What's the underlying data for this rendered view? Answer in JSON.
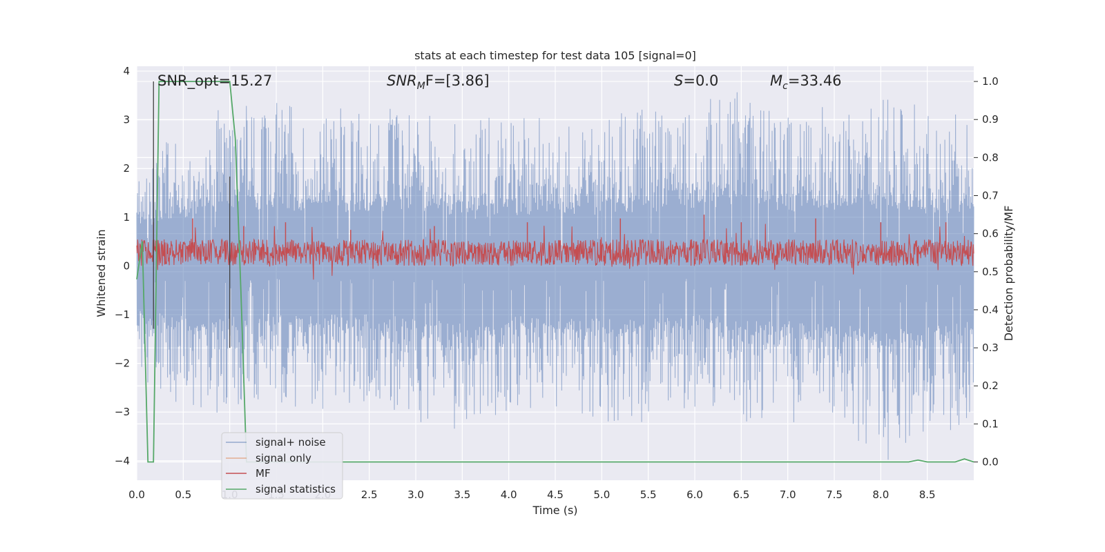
{
  "chart_data": {
    "type": "line",
    "title": "stats at each timestep for test data 105 [signal=0]",
    "xlabel": "Time (s)",
    "ylabel": "Whitened strain",
    "ylabel_right": "Detection probability/MF",
    "xlim": [
      0.0,
      9.0
    ],
    "ylim": [
      -4.4,
      4.1
    ],
    "ylim_right": [
      -0.048,
      1.04
    ],
    "grid": true,
    "legend_position": "lower-left",
    "x_ticks": [
      0.0,
      0.5,
      1.0,
      1.5,
      2.0,
      2.5,
      3.0,
      3.5,
      4.0,
      4.5,
      5.0,
      5.5,
      6.0,
      6.5,
      7.0,
      7.5,
      8.0,
      8.5
    ],
    "x_tick_labels": [
      "0.0",
      "0.5",
      "1.0",
      "1.5",
      "2.0",
      "2.5",
      "3.0",
      "3.5",
      "4.0",
      "4.5",
      "5.0",
      "5.5",
      "6.0",
      "6.5",
      "7.0",
      "7.5",
      "8.0",
      "8.5"
    ],
    "y_ticks": [
      -4,
      -3,
      -2,
      -1,
      0,
      1,
      2,
      3,
      4
    ],
    "y_tick_labels": [
      "−4",
      "−3",
      "−2",
      "−1",
      "0",
      "1",
      "2",
      "3",
      "4"
    ],
    "y_ticks_right": [
      0.0,
      0.1,
      0.2,
      0.3,
      0.4,
      0.5,
      0.6,
      0.7,
      0.8,
      0.9,
      1.0
    ],
    "y_tick_labels_right": [
      "0.0",
      "0.1",
      "0.2",
      "0.3",
      "0.4",
      "0.5",
      "0.6",
      "0.7",
      "0.8",
      "0.9",
      "1.0"
    ],
    "annotations": {
      "snr_opt": "SNR_opt=15.27",
      "snr_mf_label": "SNR",
      "snr_mf_sub": "M",
      "snr_mf_rest": "F=[3.86]",
      "s_label": "S",
      "s_rest": "=0.0",
      "mc_label": "M",
      "mc_sub": "c",
      "mc_rest": "=33.46"
    },
    "series": [
      {
        "name": "signal+ noise",
        "color": "#4c72b0",
        "axis": "left",
        "style": "noise",
        "envelope_upper": [
          [
            0.0,
            2.2
          ],
          [
            0.5,
            2.6
          ],
          [
            1.0,
            3.2
          ],
          [
            1.5,
            3.3
          ],
          [
            2.0,
            3.0
          ],
          [
            2.5,
            3.0
          ],
          [
            3.0,
            3.1
          ],
          [
            3.5,
            2.7
          ],
          [
            4.0,
            2.9
          ],
          [
            4.5,
            2.9
          ],
          [
            5.0,
            2.9
          ],
          [
            5.5,
            3.0
          ],
          [
            6.0,
            3.3
          ],
          [
            6.5,
            3.6
          ],
          [
            7.0,
            3.0
          ],
          [
            7.5,
            3.2
          ],
          [
            8.0,
            3.2
          ],
          [
            8.5,
            3.0
          ],
          [
            9.0,
            2.8
          ]
        ],
        "envelope_lower": [
          [
            0.0,
            -2.1
          ],
          [
            0.5,
            -2.9
          ],
          [
            1.0,
            -2.9
          ],
          [
            1.5,
            -2.6
          ],
          [
            2.0,
            -2.8
          ],
          [
            2.5,
            -2.7
          ],
          [
            3.0,
            -3.0
          ],
          [
            3.5,
            -3.3
          ],
          [
            4.0,
            -2.8
          ],
          [
            4.5,
            -3.0
          ],
          [
            5.0,
            -3.1
          ],
          [
            5.5,
            -3.0
          ],
          [
            6.0,
            -2.8
          ],
          [
            6.5,
            -3.0
          ],
          [
            7.0,
            -3.1
          ],
          [
            7.5,
            -3.0
          ],
          [
            8.0,
            -3.8
          ],
          [
            8.5,
            -3.4
          ],
          [
            9.0,
            -3.0
          ]
        ]
      },
      {
        "name": "signal only",
        "color": "#dd8452",
        "axis": "left",
        "style": "none"
      },
      {
        "name": "MF",
        "color": "#c44e52",
        "axis": "right",
        "style": "band",
        "band_mid": 0.55,
        "band_half_width": 0.035,
        "peaks": [
          [
            0.18,
            0.63
          ],
          [
            0.6,
            0.64
          ],
          [
            1.15,
            0.62
          ],
          [
            1.6,
            0.63
          ],
          [
            2.3,
            0.61
          ],
          [
            3.2,
            0.62
          ],
          [
            4.2,
            0.63
          ],
          [
            5.2,
            0.64
          ],
          [
            6.1,
            0.65
          ],
          [
            6.5,
            0.63
          ],
          [
            7.3,
            0.64
          ],
          [
            8.0,
            0.63
          ],
          [
            8.7,
            0.63
          ]
        ]
      },
      {
        "name": "signal statistics",
        "color": "#55a868",
        "axis": "right",
        "style": "line",
        "x": [
          0.0,
          0.06,
          0.12,
          0.18,
          0.24,
          0.3,
          0.6,
          0.9,
          1.0,
          1.06,
          1.12,
          1.18,
          1.5,
          2.0,
          3.0,
          4.0,
          5.0,
          6.0,
          7.0,
          8.0,
          8.3,
          8.4,
          8.5,
          8.8,
          8.9,
          9.0
        ],
        "y": [
          0.48,
          0.58,
          0.0,
          0.0,
          1.0,
          1.0,
          1.0,
          1.0,
          1.0,
          0.85,
          0.45,
          0.0,
          0.0,
          0.0,
          0.0,
          0.0,
          0.0,
          0.0,
          0.0,
          0.0,
          0.0,
          0.005,
          0.0,
          0.0,
          0.008,
          0.0
        ]
      }
    ],
    "vertical_markers": [
      {
        "x": 0.18,
        "y_top": 1.0,
        "y_bottom": 0.35,
        "color": "#404040"
      },
      {
        "x": 1.0,
        "y_top": 0.75,
        "y_bottom": 0.3,
        "color": "#404040"
      }
    ]
  }
}
